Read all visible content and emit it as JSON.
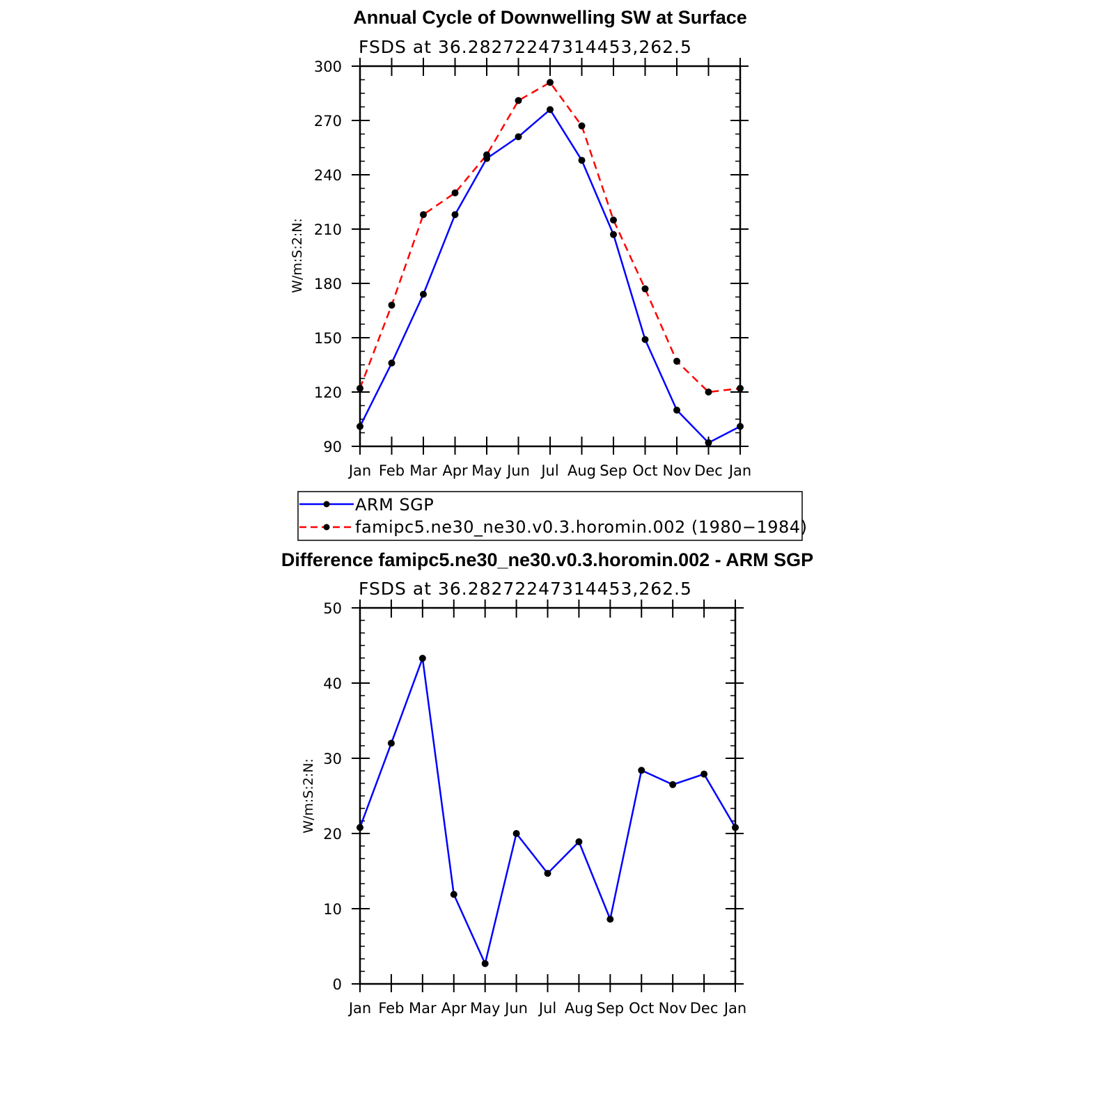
{
  "chart_data": [
    {
      "type": "line",
      "title": "Annual Cycle of Downwelling SW at Surface",
      "subtitle": "FSDS at 36.28272247314453,262.5",
      "ylabel": "W/m:S:2:N:",
      "xlabel": "",
      "categories": [
        "Jan",
        "Feb",
        "Mar",
        "Apr",
        "May",
        "Jun",
        "Jul",
        "Aug",
        "Sep",
        "Oct",
        "Nov",
        "Dec",
        "Jan"
      ],
      "ylim": [
        90,
        300
      ],
      "yticks": [
        90,
        120,
        150,
        180,
        210,
        240,
        270,
        300
      ],
      "series": [
        {
          "name": "ARM SGP",
          "color": "#0000ff",
          "dash": "solid",
          "values": [
            101,
            136,
            174,
            218,
            249,
            261,
            276,
            248,
            207,
            149,
            110,
            92,
            101
          ]
        },
        {
          "name": "famipc5.ne30_ne30.v0.3.horomin.002 (1980−1984)",
          "color": "#ff0000",
          "dash": "dashed",
          "values": [
            122,
            168,
            218,
            230,
            251,
            281,
            291,
            267,
            215,
            177,
            137,
            120,
            122
          ]
        }
      ],
      "legend": {
        "placement": "below"
      }
    },
    {
      "type": "line",
      "title": "Difference famipc5.ne30_ne30.v0.3.horomin.002 - ARM SGP",
      "subtitle": "FSDS at 36.28272247314453,262.5",
      "ylabel": "W/m:S:2:N:",
      "xlabel": "",
      "categories": [
        "Jan",
        "Feb",
        "Mar",
        "Apr",
        "May",
        "Jun",
        "Jul",
        "Aug",
        "Sep",
        "Oct",
        "Nov",
        "Dec",
        "Jan"
      ],
      "ylim": [
        0,
        50
      ],
      "yticks": [
        0,
        10,
        20,
        30,
        40,
        50
      ],
      "series": [
        {
          "color": "#0000ff",
          "dash": "solid",
          "values": [
            20.8,
            32,
            43.3,
            11.9,
            2.7,
            20,
            14.7,
            18.9,
            8.6,
            28.4,
            26.5,
            27.9,
            20.8
          ]
        }
      ]
    }
  ]
}
